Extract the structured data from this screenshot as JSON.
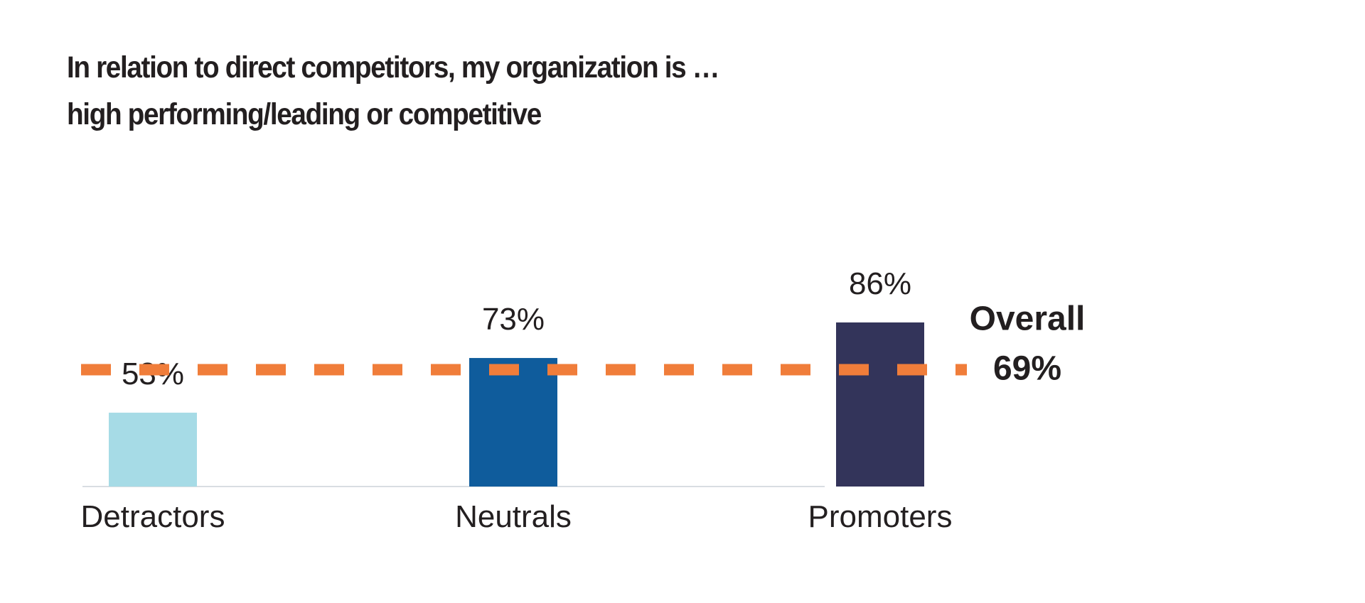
{
  "chart_data": {
    "type": "bar",
    "title": "In relation to direct competitors, my organization is …",
    "subtitle": "high performing/leading or competitive",
    "categories": [
      "Detractors",
      "Neutrals",
      "Promoters"
    ],
    "values": [
      53,
      73,
      86
    ],
    "value_labels": [
      "53%",
      "73%",
      "86%"
    ],
    "colors": [
      "#a6dbe6",
      "#0f5c9c",
      "#33345a"
    ],
    "reference_line": {
      "label": "Overall",
      "value": 69,
      "value_label": "69%",
      "color": "#f07d3a",
      "style": "dashed"
    },
    "grid": false,
    "legend": "none"
  }
}
